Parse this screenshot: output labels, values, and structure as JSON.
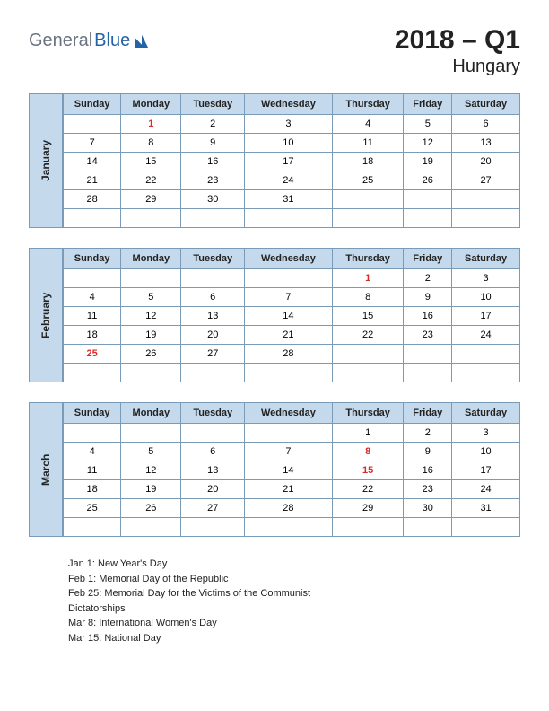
{
  "logo": {
    "text1": "General",
    "text2": "Blue"
  },
  "title": {
    "main": "2018 – Q1",
    "sub": "Hungary"
  },
  "days": [
    "Sunday",
    "Monday",
    "Tuesday",
    "Wednesday",
    "Thursday",
    "Friday",
    "Saturday"
  ],
  "colors": {
    "header_bg": "#c5d9ec",
    "border": "#7a9bb8",
    "holiday": "#d6292b",
    "logo_gray": "#6b7280",
    "logo_blue": "#2563a8"
  },
  "months": [
    {
      "name": "January",
      "weeks": [
        [
          "",
          "1",
          "2",
          "3",
          "4",
          "5",
          "6"
        ],
        [
          "7",
          "8",
          "9",
          "10",
          "11",
          "12",
          "13"
        ],
        [
          "14",
          "15",
          "16",
          "17",
          "18",
          "19",
          "20"
        ],
        [
          "21",
          "22",
          "23",
          "24",
          "25",
          "26",
          "27"
        ],
        [
          "28",
          "29",
          "30",
          "31",
          "",
          "",
          ""
        ],
        [
          "",
          "",
          "",
          "",
          "",
          "",
          ""
        ]
      ],
      "holidays_cells": [
        [
          0,
          1
        ]
      ]
    },
    {
      "name": "February",
      "weeks": [
        [
          "",
          "",
          "",
          "",
          "1",
          "2",
          "3"
        ],
        [
          "4",
          "5",
          "6",
          "7",
          "8",
          "9",
          "10"
        ],
        [
          "11",
          "12",
          "13",
          "14",
          "15",
          "16",
          "17"
        ],
        [
          "18",
          "19",
          "20",
          "21",
          "22",
          "23",
          "24"
        ],
        [
          "25",
          "26",
          "27",
          "28",
          "",
          "",
          ""
        ],
        [
          "",
          "",
          "",
          "",
          "",
          "",
          ""
        ]
      ],
      "holidays_cells": [
        [
          0,
          4
        ],
        [
          4,
          0
        ]
      ]
    },
    {
      "name": "March",
      "weeks": [
        [
          "",
          "",
          "",
          "",
          "1",
          "2",
          "3"
        ],
        [
          "4",
          "5",
          "6",
          "7",
          "8",
          "9",
          "10"
        ],
        [
          "11",
          "12",
          "13",
          "14",
          "15",
          "16",
          "17"
        ],
        [
          "18",
          "19",
          "20",
          "21",
          "22",
          "23",
          "24"
        ],
        [
          "25",
          "26",
          "27",
          "28",
          "29",
          "30",
          "31"
        ],
        [
          "",
          "",
          "",
          "",
          "",
          "",
          ""
        ]
      ],
      "holidays_cells": [
        [
          1,
          4
        ],
        [
          2,
          4
        ]
      ]
    }
  ],
  "holidays_list": [
    "Jan 1: New Year's Day",
    "Feb 1: Memorial Day of the Republic",
    "Feb 25: Memorial Day for the Victims of the Communist Dictatorships",
    "Mar 8: International Women's Day",
    "Mar 15: National Day"
  ]
}
